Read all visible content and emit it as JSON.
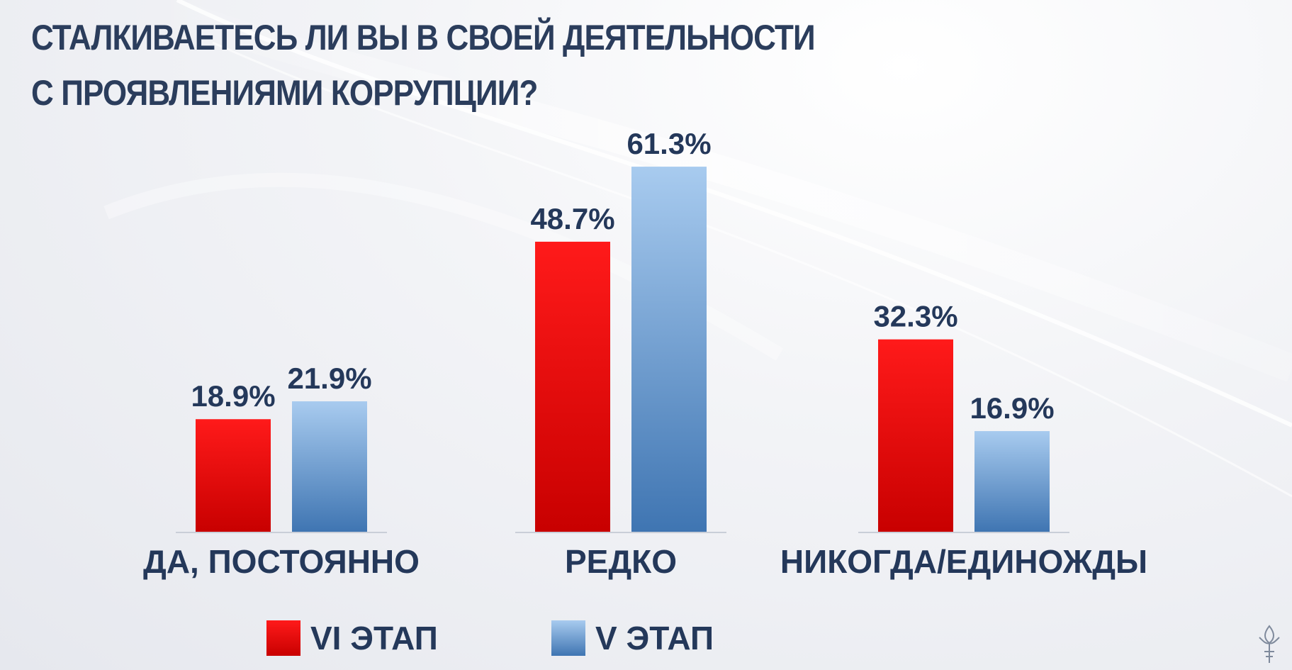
{
  "title": {
    "line1": "СТАЛКИВАЕТЕСЬ ЛИ ВЫ В СВОЕЙ ДЕЯТЕЛЬНОСТИ",
    "line2": "С ПРОЯВЛЕНИЯМИ КОРРУПЦИИ?"
  },
  "legend": {
    "vi": "VI ЭТАП",
    "v": "V ЭТАП"
  },
  "colors": {
    "vi_top": "#ff1a1a",
    "vi_bottom": "#c80000",
    "v_top": "#a8cbef",
    "v_bottom": "#3f75b2",
    "text": "#24385a"
  },
  "chart_data": {
    "type": "bar",
    "categories": [
      "ДА, ПОСТОЯННО",
      "РЕДКО",
      "НИКОГДА/ЕДИНОЖДЫ"
    ],
    "series": [
      {
        "name": "VI ЭТАП",
        "values": [
          18.9,
          48.7,
          32.3
        ],
        "labels": [
          "18.9%",
          "48.7%",
          "32.3%"
        ]
      },
      {
        "name": "V ЭТАП",
        "values": [
          21.9,
          61.3,
          16.9
        ],
        "labels": [
          "21.9%",
          "61.3%",
          "16.9%"
        ]
      }
    ],
    "ylim": [
      0,
      70
    ],
    "grid": false,
    "legend_position": "bottom"
  }
}
